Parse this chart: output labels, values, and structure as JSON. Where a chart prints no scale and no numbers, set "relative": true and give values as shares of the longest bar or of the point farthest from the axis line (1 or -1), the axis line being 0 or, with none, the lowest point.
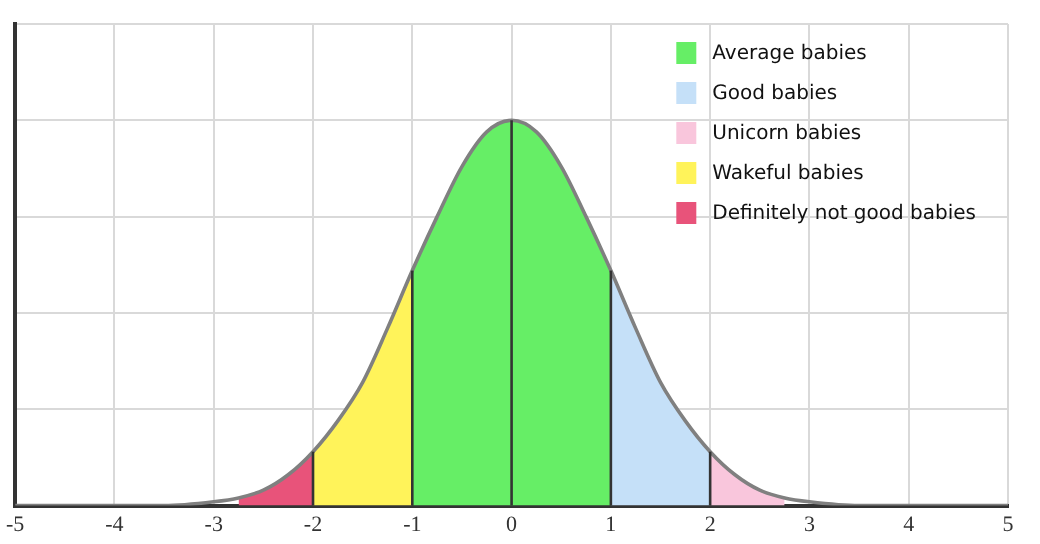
{
  "chart_data": {
    "type": "area",
    "relative": true,
    "marker": "none",
    "grid": true,
    "legend": "top right",
    "xlim": [
      -5,
      5
    ],
    "xticks": [
      -5,
      -4,
      -3,
      -2,
      -1,
      0,
      1,
      2,
      3,
      4,
      5
    ],
    "series": [
      {
        "name": "Average babies",
        "color": "#66ee66",
        "x": [
          -1,
          -0.75,
          -0.5,
          -0.25,
          0,
          0.25,
          0.5,
          0.75,
          1
        ],
        "values": [
          0.61,
          0.75,
          0.88,
          0.97,
          1,
          0.97,
          0.88,
          0.75,
          0.61
        ]
      },
      {
        "name": "Good babies",
        "color": "#c5e0f8",
        "x": [
          1,
          1.25,
          1.5,
          1.75,
          2
        ],
        "values": [
          0.61,
          0.46,
          0.32,
          0.22,
          0.14
        ]
      },
      {
        "name": "Unicorn babies",
        "color": "#f9c6dc",
        "x": [
          2,
          2.25,
          2.5,
          2.75
        ],
        "values": [
          0.14,
          0.08,
          0.04,
          0.02
        ]
      },
      {
        "name": "Wakeful babies",
        "color": "#fff35a",
        "x": [
          -2,
          -1.75,
          -1.5,
          -1.25,
          -1
        ],
        "values": [
          0.14,
          0.22,
          0.32,
          0.46,
          0.61
        ]
      },
      {
        "name": "Definitely not good babies",
        "color": "#e8537a",
        "x": [
          -2.75,
          -2.5,
          -2.25,
          -2
        ],
        "values": [
          0.02,
          0.04,
          0.08,
          0.14
        ]
      },
      {
        "type": "line",
        "color": "#808080",
        "x": [
          -5,
          -4.5,
          -4,
          -3.5,
          -3,
          -2.75,
          -2.5,
          -2.25,
          -2,
          -1.75,
          -1.5,
          -1.25,
          -1,
          -0.75,
          -0.5,
          -0.25,
          0,
          0.25,
          0.5,
          0.75,
          1,
          1.25,
          1.5,
          1.75,
          2,
          2.25,
          2.5,
          2.75,
          3,
          3.5,
          4,
          4.5,
          5
        ],
        "values": [
          0,
          0,
          0,
          0,
          0.01,
          0.02,
          0.04,
          0.08,
          0.14,
          0.22,
          0.32,
          0.46,
          0.61,
          0.75,
          0.88,
          0.97,
          1,
          0.97,
          0.88,
          0.75,
          0.61,
          0.46,
          0.32,
          0.22,
          0.14,
          0.08,
          0.04,
          0.02,
          0.01,
          0,
          0,
          0,
          0
        ]
      }
    ],
    "ref_lines": [
      {
        "axis": "x",
        "value": -2,
        "color": "#333333"
      },
      {
        "axis": "x",
        "value": -1,
        "color": "#333333"
      },
      {
        "axis": "x",
        "value": 0,
        "color": "#333333"
      },
      {
        "axis": "x",
        "value": 1,
        "color": "#333333"
      },
      {
        "axis": "x",
        "value": 2,
        "color": "#333333"
      }
    ]
  }
}
